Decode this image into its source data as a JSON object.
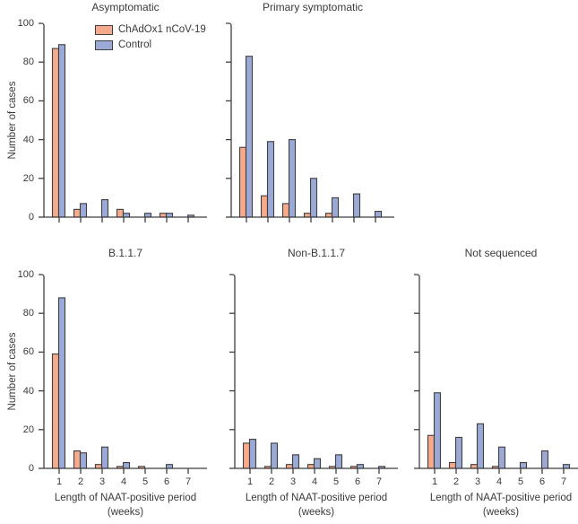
{
  "figure": {
    "background": "#ffffff"
  },
  "legend": {
    "items": [
      {
        "label": "ChAdOx1 nCoV-19",
        "color": "#f6a98b"
      },
      {
        "label": "Control",
        "color": "#9aa9d5"
      }
    ]
  },
  "axis_labels": {
    "y": "Number of cases",
    "x_line1": "Length of NAAT-positive period",
    "x_line2": "(weeks)"
  },
  "colors": {
    "vaccine_fill": "#f6a98b",
    "control_fill": "#9aa9d5",
    "bar_stroke": "#3f3f3f",
    "axis_stroke": "#3f3f3f",
    "text": "#3a3a3a"
  },
  "chart_data": [
    {
      "type": "bar",
      "title": "Asymptomatic",
      "categories": [
        "1",
        "2",
        "3",
        "4",
        "5",
        "6",
        "7"
      ],
      "series": [
        {
          "name": "ChAdOx1 nCoV-19",
          "values": [
            87,
            4,
            0,
            4,
            0,
            2,
            0
          ]
        },
        {
          "name": "Control",
          "values": [
            89,
            7,
            9,
            2,
            2,
            2,
            1
          ]
        }
      ],
      "xlabel": "",
      "ylabel": "Number of cases",
      "ylim": [
        0,
        100
      ],
      "yticks": [
        0,
        20,
        40,
        60,
        80,
        100
      ],
      "show_ytick_labels": true,
      "show_xtick_labels": false,
      "show_xlabel": false,
      "legend_position": "top-left-inside",
      "grid": false
    },
    {
      "type": "bar",
      "title": "Primary symptomatic",
      "categories": [
        "1",
        "2",
        "3",
        "4",
        "5",
        "6",
        "7"
      ],
      "series": [
        {
          "name": "ChAdOx1 nCoV-19",
          "values": [
            36,
            11,
            7,
            2,
            2,
            0,
            0
          ]
        },
        {
          "name": "Control",
          "values": [
            83,
            39,
            40,
            20,
            10,
            12,
            3
          ]
        }
      ],
      "xlabel": "",
      "ylabel": "",
      "ylim": [
        0,
        100
      ],
      "yticks": [
        0,
        20,
        40,
        60,
        80,
        100
      ],
      "show_ytick_labels": false,
      "show_xtick_labels": false,
      "show_xlabel": false,
      "grid": false
    },
    {
      "type": "bar",
      "title": "B.1.1.7",
      "categories": [
        "1",
        "2",
        "3",
        "4",
        "5",
        "6",
        "7"
      ],
      "series": [
        {
          "name": "ChAdOx1 nCoV-19",
          "values": [
            59,
            9,
            2,
            1,
            1,
            0,
            0
          ]
        },
        {
          "name": "Control",
          "values": [
            88,
            8,
            11,
            3,
            0,
            2,
            0
          ]
        }
      ],
      "xlabel": "Length of NAAT-positive period (weeks)",
      "ylabel": "Number of cases",
      "ylim": [
        0,
        100
      ],
      "yticks": [
        0,
        20,
        40,
        60,
        80,
        100
      ],
      "show_ytick_labels": true,
      "show_xtick_labels": true,
      "show_xlabel": true,
      "grid": false
    },
    {
      "type": "bar",
      "title": "Non-B.1.1.7",
      "categories": [
        "1",
        "2",
        "3",
        "4",
        "5",
        "6",
        "7"
      ],
      "series": [
        {
          "name": "ChAdOx1 nCoV-19",
          "values": [
            13,
            1,
            2,
            2,
            1,
            1,
            0
          ]
        },
        {
          "name": "Control",
          "values": [
            15,
            13,
            7,
            5,
            7,
            2,
            1
          ]
        }
      ],
      "xlabel": "Length of NAAT-positive period (weeks)",
      "ylabel": "",
      "ylim": [
        0,
        100
      ],
      "yticks": [
        0,
        20,
        40,
        60,
        80,
        100
      ],
      "show_ytick_labels": false,
      "show_xtick_labels": true,
      "show_xlabel": true,
      "grid": false
    },
    {
      "type": "bar",
      "title": "Not sequenced",
      "categories": [
        "1",
        "2",
        "3",
        "4",
        "5",
        "6",
        "7"
      ],
      "series": [
        {
          "name": "ChAdOx1 nCoV-19",
          "values": [
            17,
            3,
            2,
            1,
            0,
            0,
            0
          ]
        },
        {
          "name": "Control",
          "values": [
            39,
            16,
            23,
            11,
            3,
            9,
            2
          ]
        }
      ],
      "xlabel": "Length of NAAT-positive period (weeks)",
      "ylabel": "",
      "ylim": [
        0,
        100
      ],
      "yticks": [
        0,
        20,
        40,
        60,
        80,
        100
      ],
      "show_ytick_labels": false,
      "show_xtick_labels": true,
      "show_xlabel": true,
      "grid": false
    }
  ]
}
